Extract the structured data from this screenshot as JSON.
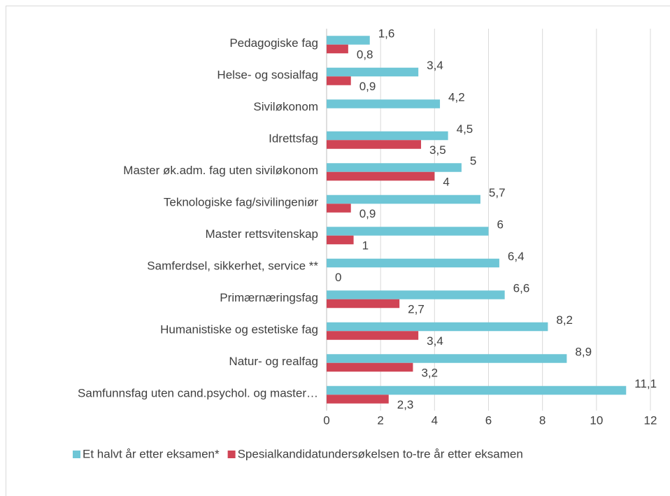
{
  "chart_data": {
    "type": "bar",
    "orientation": "horizontal",
    "categories": [
      "Pedagogiske fag",
      "Helse- og sosialfag",
      "Siviløkonom",
      "Idrettsfag",
      "Master øk.adm. fag uten siviløkonom",
      "Teknologiske fag/sivilingeniør",
      "Master rettsvitenskap",
      "Samferdsel, sikkerhet, service **",
      "Primærnæringsfag",
      "Humanistiske og estetiske fag",
      "Natur- og realfag",
      "Samfunnsfag uten cand.psychol. og master…"
    ],
    "series": [
      {
        "name": "Et halvt år etter eksamen*",
        "color": "#6ec6d6",
        "values": [
          1.6,
          3.4,
          4.2,
          4.5,
          5,
          5.7,
          6,
          6.4,
          6.6,
          8.2,
          8.9,
          11.1
        ],
        "value_labels": [
          "1,6",
          "3,4",
          "4,2",
          "4,5",
          "5",
          "5,7",
          "6",
          "6,4",
          "6,6",
          "8,2",
          "8,9",
          "11,1"
        ]
      },
      {
        "name": "Spesialkandidatundersøkelsen to-tre år etter eksamen",
        "color": "#d04455",
        "values": [
          0.8,
          0.9,
          null,
          3.5,
          4,
          0.9,
          1,
          0,
          2.7,
          3.4,
          3.2,
          2.3
        ],
        "value_labels": [
          "0,8",
          "0,9",
          null,
          "3,5",
          "4",
          "0,9",
          "1",
          "0",
          "2,7",
          "3,4",
          "3,2",
          "2,3"
        ]
      }
    ],
    "xlim": [
      0,
      12
    ],
    "xticks": [
      0,
      2,
      4,
      6,
      8,
      10,
      12
    ],
    "grid": true,
    "legend": "bottom"
  }
}
